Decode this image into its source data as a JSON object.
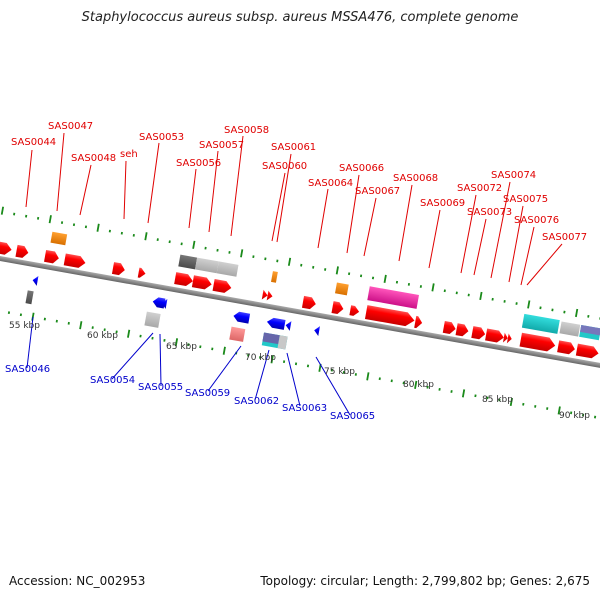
{
  "title": "Staphylococcus aureus subsp. aureus MSSA476, complete genome",
  "footer": {
    "accession": "Accession: NC_002953",
    "topology": "Topology: circular; Length: 2,799,802 bp; Genes: 2,675"
  },
  "colors": {
    "forward_label": "#e00000",
    "reverse_label": "#0000cc",
    "ticks": "#1a8a1a",
    "backbone": "#888888",
    "cds_forward": "#ff0000",
    "cds_reverse": "#0000ff",
    "orange_feature": "#ff8c00",
    "pink_feature": "#ee3399",
    "cyan_feature": "#22c8c8",
    "gray_feature": "#bbbbbb"
  },
  "scale_labels": [
    "55 kbp",
    "60 kbp",
    "65 kbp",
    "70 kbp",
    "75 kbp",
    "80 kbp",
    "85 kbp",
    "90 kbp"
  ],
  "forward_genes": [
    {
      "label": "SAS0044"
    },
    {
      "label": "SAS0047"
    },
    {
      "label": "SAS0048"
    },
    {
      "label": "seh"
    },
    {
      "label": "SAS0053"
    },
    {
      "label": "SAS0056"
    },
    {
      "label": "SAS0057"
    },
    {
      "label": "SAS0058"
    },
    {
      "label": "SAS0060"
    },
    {
      "label": "SAS0061"
    },
    {
      "label": "SAS0064"
    },
    {
      "label": "SAS0066"
    },
    {
      "label": "SAS0067"
    },
    {
      "label": "SAS0068"
    },
    {
      "label": "SAS0069"
    },
    {
      "label": "SAS0072"
    },
    {
      "label": "SAS0073"
    },
    {
      "label": "SAS0074"
    },
    {
      "label": "SAS0075"
    },
    {
      "label": "SAS0076"
    },
    {
      "label": "SAS0077"
    }
  ],
  "reverse_genes": [
    {
      "label": "SAS0046"
    },
    {
      "label": "SAS0054"
    },
    {
      "label": "SAS0055"
    },
    {
      "label": "SAS0059"
    },
    {
      "label": "SAS0062"
    },
    {
      "label": "SAS0063"
    },
    {
      "label": "SAS0065"
    }
  ]
}
